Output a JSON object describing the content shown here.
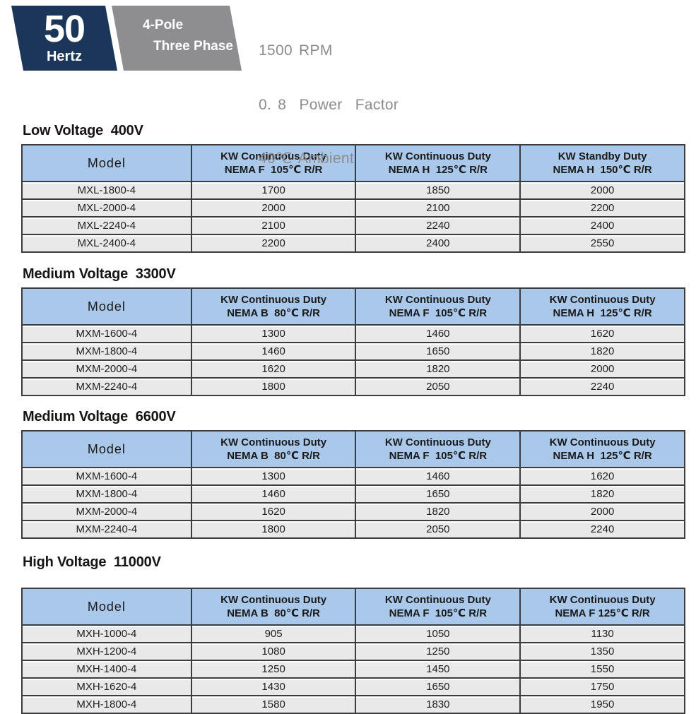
{
  "badge": {
    "frequency": "50",
    "frequency_unit": "Hertz",
    "pole": "4-Pole",
    "phase": "Three Phase"
  },
  "specs": {
    "rpm": "1500 RPM",
    "power_factor": "0. 8  Power  Factor",
    "ambient": "40℃ Ambient"
  },
  "colors": {
    "navy": "#1b3659",
    "badge_gray": "#8e8e90",
    "header_blue": "#aac8e9",
    "row_gray": "#e9e9ea",
    "border_dark": "#3c3c3e",
    "specs_text_gray": "#8b8c8e"
  },
  "tables": [
    {
      "title": "Low Voltage  400V",
      "columns": [
        {
          "l1": "Model"
        },
        {
          "l1": "KW Continuous Duty",
          "l2": "NEMA F  105℃ R/R"
        },
        {
          "l1": "KW Continuous Duty",
          "l2": "NEMA H  125℃ R/R"
        },
        {
          "l1": "KW Standby Duty",
          "l2": "NEMA H  150℃ R/R"
        }
      ],
      "rows": [
        [
          "MXL-1800-4",
          "1700",
          "1850",
          "2000"
        ],
        [
          "MXL-2000-4",
          "2000",
          "2100",
          "2200"
        ],
        [
          "MXL-2240-4",
          "2100",
          "2240",
          "2400"
        ],
        [
          "MXL-2400-4",
          "2200",
          "2400",
          "2550"
        ]
      ]
    },
    {
      "title": "Medium Voltage  3300V",
      "columns": [
        {
          "l1": "Model"
        },
        {
          "l1": "KW Continuous Duty",
          "l2": "NEMA B  80℃ R/R"
        },
        {
          "l1": "KW Continuous Duty",
          "l2": "NEMA F  105℃ R/R"
        },
        {
          "l1": "KW Continuous Duty",
          "l2": "NEMA H  125℃ R/R"
        }
      ],
      "rows": [
        [
          "MXM-1600-4",
          "1300",
          "1460",
          "1620"
        ],
        [
          "MXM-1800-4",
          "1460",
          "1650",
          "1820"
        ],
        [
          "MXM-2000-4",
          "1620",
          "1820",
          "2000"
        ],
        [
          "MXM-2240-4",
          "1800",
          "2050",
          "2240"
        ]
      ]
    },
    {
      "title": "Medium Voltage  6600V",
      "columns": [
        {
          "l1": "Model"
        },
        {
          "l1": "KW Continuous Duty",
          "l2": "NEMA B  80℃ R/R"
        },
        {
          "l1": "KW Continuous Duty",
          "l2": "NEMA F  105℃ R/R"
        },
        {
          "l1": "KW Continuous Duty",
          "l2": "NEMA H  125℃ R/R"
        }
      ],
      "rows": [
        [
          "MXM-1600-4",
          "1300",
          "1460",
          "1620"
        ],
        [
          "MXM-1800-4",
          "1460",
          "1650",
          "1820"
        ],
        [
          "MXM-2000-4",
          "1620",
          "1820",
          "2000"
        ],
        [
          "MXM-2240-4",
          "1800",
          "2050",
          "2240"
        ]
      ]
    },
    {
      "title": "High Voltage  11000V",
      "columns": [
        {
          "l1": "Model"
        },
        {
          "l1": "KW Continuous Duty",
          "l2": "NEMA B  80℃ R/R"
        },
        {
          "l1": "KW Continuous Duty",
          "l2": "NEMA F  105℃ R/R"
        },
        {
          "l1": "KW Continuous Duty",
          "l2": "NEMA F 125℃ R/R"
        }
      ],
      "rows": [
        [
          "MXH-1000-4",
          "905",
          "1050",
          "1130"
        ],
        [
          "MXH-1200-4",
          "1080",
          "1250",
          "1350"
        ],
        [
          "MXH-1400-4",
          "1250",
          "1450",
          "1550"
        ],
        [
          "MXH-1620-4",
          "1430",
          "1650",
          "1750"
        ],
        [
          "MXH-1800-4",
          "1580",
          "1830",
          "1950"
        ]
      ]
    }
  ]
}
